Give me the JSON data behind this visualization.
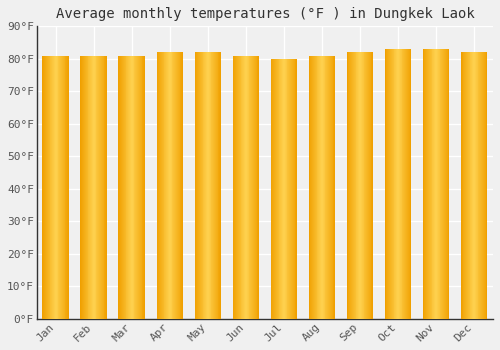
{
  "title": "Average monthly temperatures (°F ) in Dungkek Laok",
  "months": [
    "Jan",
    "Feb",
    "Mar",
    "Apr",
    "May",
    "Jun",
    "Jul",
    "Aug",
    "Sep",
    "Oct",
    "Nov",
    "Dec"
  ],
  "values": [
    81,
    81,
    81,
    82,
    82,
    81,
    80,
    81,
    82,
    83,
    83,
    82
  ],
  "bar_color_center": "#FFD060",
  "bar_color_edge": "#F0A000",
  "background_color": "#f0f0f0",
  "plot_bg_color": "#f0f0f0",
  "grid_color": "#ffffff",
  "ylim": [
    0,
    90
  ],
  "ytick_interval": 10,
  "title_fontsize": 10,
  "tick_fontsize": 8,
  "font_family": "monospace",
  "bar_width": 0.7,
  "n_gradient_slices": 30
}
